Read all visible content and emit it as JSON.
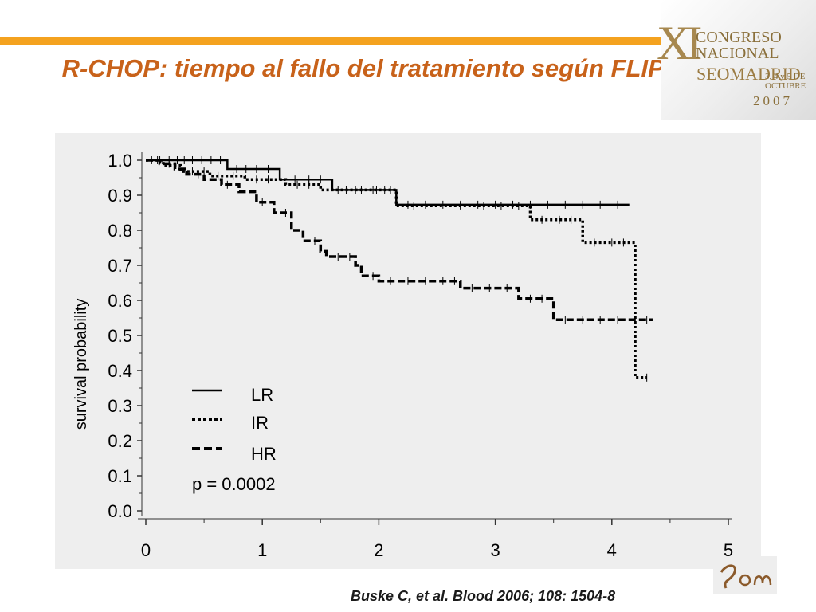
{
  "slide": {
    "title": "R-CHOP: tiempo al fallo del tratamiento según FLIPI",
    "citation": "Buske C, et al. Blood 2006; 108: 1504-8",
    "accent_color": "#f4a21f",
    "title_color": "#c8621a"
  },
  "logo": {
    "roman": "XI",
    "line1": "CONGRESO",
    "line2": "NACIONAL",
    "line3": "SEOMADRID",
    "line4": "3, 4 y 5 DE OCTUBRE",
    "line5": "2007",
    "bottom_logo": "seom"
  },
  "chart_data": {
    "type": "line",
    "subtype": "kaplan-meier",
    "ylabel": "survival probability",
    "xlabel": "",
    "xlim": [
      0,
      5
    ],
    "ylim": [
      0,
      1
    ],
    "x_ticks": [
      "0",
      "1",
      "2",
      "3",
      "4",
      "5"
    ],
    "y_ticks": [
      "0.0",
      "0.1",
      "0.2",
      "0.3",
      "0.4",
      "0.5",
      "0.6",
      "0.7",
      "0.8",
      "0.9",
      "1.0"
    ],
    "legend_position": "bottom-left",
    "annotation": "p = 0.0002",
    "series": [
      {
        "name": "LR",
        "style": "solid",
        "steps": [
          [
            0,
            1.0
          ],
          [
            0.7,
            0.975
          ],
          [
            1.15,
            0.945
          ],
          [
            1.6,
            0.915
          ],
          [
            2.15,
            0.873
          ],
          [
            4.15,
            0.873
          ]
        ],
        "censors": [
          0.05,
          0.12,
          0.2,
          0.27,
          0.33,
          0.4,
          0.48,
          0.56,
          0.64,
          0.78,
          0.86,
          0.95,
          1.05,
          1.28,
          1.4,
          1.5,
          1.72,
          1.85,
          1.98,
          2.1,
          2.25,
          2.4,
          2.55,
          2.7,
          2.85,
          3.0,
          3.15,
          3.3,
          3.45,
          3.6,
          3.75,
          3.9,
          4.05
        ]
      },
      {
        "name": "IR",
        "style": "dotted",
        "steps": [
          [
            0,
            1.0
          ],
          [
            0.15,
            0.985
          ],
          [
            0.3,
            0.968
          ],
          [
            0.55,
            0.955
          ],
          [
            0.85,
            0.945
          ],
          [
            1.2,
            0.93
          ],
          [
            1.5,
            0.915
          ],
          [
            2.15,
            0.87
          ],
          [
            3.3,
            0.83
          ],
          [
            3.75,
            0.765
          ],
          [
            4.2,
            0.38
          ],
          [
            4.3,
            0.38
          ]
        ],
        "censors": [
          0.1,
          0.25,
          0.4,
          0.5,
          0.62,
          0.75,
          0.95,
          1.05,
          1.3,
          1.4,
          1.65,
          1.8,
          1.95,
          2.05,
          2.3,
          2.5,
          2.7,
          2.9,
          3.05,
          3.2,
          3.4,
          3.55,
          3.65,
          3.85,
          4.0,
          4.1,
          4.3
        ]
      },
      {
        "name": "HR",
        "style": "dashed",
        "steps": [
          [
            0,
            1.0
          ],
          [
            0.12,
            0.99
          ],
          [
            0.25,
            0.975
          ],
          [
            0.35,
            0.96
          ],
          [
            0.5,
            0.945
          ],
          [
            0.65,
            0.93
          ],
          [
            0.8,
            0.91
          ],
          [
            0.95,
            0.88
          ],
          [
            1.1,
            0.85
          ],
          [
            1.25,
            0.8
          ],
          [
            1.35,
            0.77
          ],
          [
            1.5,
            0.74
          ],
          [
            1.55,
            0.725
          ],
          [
            1.8,
            0.7
          ],
          [
            1.85,
            0.67
          ],
          [
            2.0,
            0.655
          ],
          [
            2.7,
            0.635
          ],
          [
            3.2,
            0.605
          ],
          [
            3.5,
            0.545
          ],
          [
            4.35,
            0.545
          ]
        ],
        "censors": [
          0.2,
          0.45,
          0.7,
          1.0,
          1.2,
          1.45,
          1.65,
          1.75,
          1.95,
          2.1,
          2.25,
          2.4,
          2.55,
          2.65,
          2.8,
          2.95,
          3.1,
          3.3,
          3.4,
          3.6,
          3.75,
          3.9,
          4.05,
          4.2,
          4.3
        ]
      }
    ]
  }
}
